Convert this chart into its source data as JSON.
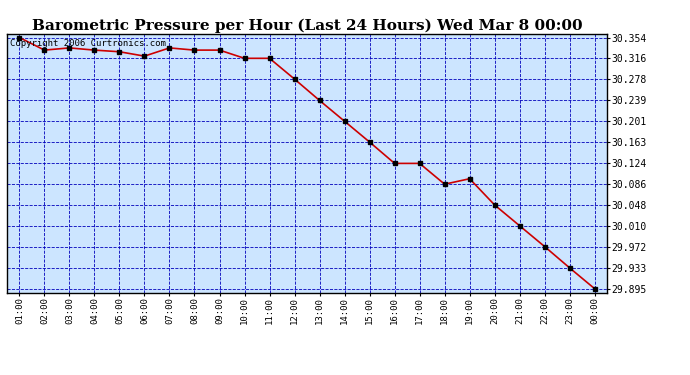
{
  "title": "Barometric Pressure per Hour (Last 24 Hours) Wed Mar 8 00:00",
  "copyright": "Copyright 2006 Curtronics.com",
  "x_labels": [
    "01:00",
    "02:00",
    "03:00",
    "04:00",
    "05:00",
    "06:00",
    "07:00",
    "08:00",
    "09:00",
    "10:00",
    "11:00",
    "12:00",
    "13:00",
    "14:00",
    "15:00",
    "16:00",
    "17:00",
    "18:00",
    "19:00",
    "20:00",
    "21:00",
    "22:00",
    "23:00",
    "00:00"
  ],
  "y_values": [
    30.354,
    30.331,
    30.335,
    30.331,
    30.328,
    30.32,
    30.335,
    30.331,
    30.331,
    30.316,
    30.316,
    30.278,
    30.239,
    30.201,
    30.163,
    30.124,
    30.124,
    30.086,
    30.096,
    30.048,
    30.01,
    29.972,
    29.933,
    29.895
  ],
  "yticks": [
    30.354,
    30.316,
    30.278,
    30.239,
    30.201,
    30.163,
    30.124,
    30.086,
    30.048,
    30.01,
    29.972,
    29.933,
    29.895
  ],
  "line_color": "#cc0000",
  "marker_color": "#000000",
  "plot_bg_color": "#cce5ff",
  "grid_color": "#0000bb",
  "title_fontsize": 11,
  "copyright_fontsize": 6.5
}
